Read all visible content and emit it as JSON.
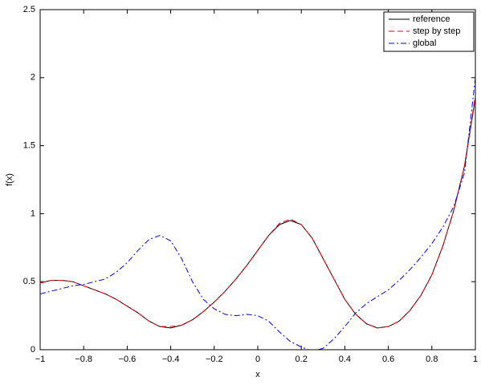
{
  "chart_data": {
    "type": "line",
    "xlabel": "x",
    "ylabel": "f(x)",
    "x": [
      -1,
      -0.95,
      -0.9,
      -0.85,
      -0.8,
      -0.75,
      -0.7,
      -0.65,
      -0.6,
      -0.55,
      -0.5,
      -0.45,
      -0.4,
      -0.35,
      -0.3,
      -0.25,
      -0.2,
      -0.15,
      -0.1,
      -0.05,
      0,
      0.05,
      0.1,
      0.15,
      0.2,
      0.25,
      0.3,
      0.35,
      0.4,
      0.45,
      0.5,
      0.55,
      0.6,
      0.65,
      0.7,
      0.75,
      0.8,
      0.85,
      0.9,
      0.95,
      1
    ],
    "series": [
      {
        "name": "reference",
        "color": "#000000",
        "style": "solid",
        "values": [
          0.49,
          0.51,
          0.51,
          0.5,
          0.47,
          0.44,
          0.41,
          0.37,
          0.32,
          0.27,
          0.21,
          0.17,
          0.16,
          0.18,
          0.22,
          0.28,
          0.35,
          0.43,
          0.52,
          0.62,
          0.73,
          0.84,
          0.92,
          0.95,
          0.92,
          0.82,
          0.67,
          0.52,
          0.37,
          0.26,
          0.19,
          0.16,
          0.17,
          0.21,
          0.29,
          0.4,
          0.55,
          0.76,
          1.02,
          1.35,
          1.85
        ]
      },
      {
        "name": "step by step",
        "color": "#ff0000",
        "style": "dashed",
        "values": [
          0.49,
          0.51,
          0.51,
          0.5,
          0.47,
          0.44,
          0.41,
          0.37,
          0.32,
          0.27,
          0.21,
          0.17,
          0.17,
          0.18,
          0.22,
          0.28,
          0.35,
          0.43,
          0.52,
          0.62,
          0.73,
          0.84,
          0.93,
          0.96,
          0.92,
          0.82,
          0.67,
          0.52,
          0.37,
          0.26,
          0.19,
          0.16,
          0.17,
          0.21,
          0.29,
          0.4,
          0.55,
          0.76,
          1.02,
          1.35,
          1.87
        ]
      },
      {
        "name": "global",
        "color": "#0000ff",
        "style": "dashdot",
        "values": [
          0.41,
          0.43,
          0.45,
          0.47,
          0.48,
          0.5,
          0.52,
          0.57,
          0.64,
          0.73,
          0.81,
          0.84,
          0.8,
          0.67,
          0.5,
          0.37,
          0.3,
          0.26,
          0.25,
          0.26,
          0.25,
          0.21,
          0.13,
          0.06,
          0.02,
          -0.01,
          0.01,
          0.08,
          0.17,
          0.27,
          0.34,
          0.39,
          0.44,
          0.51,
          0.59,
          0.68,
          0.78,
          0.9,
          1.05,
          1.3,
          2.0
        ]
      }
    ],
    "xlim": [
      -1,
      1
    ],
    "xticks": [
      {
        "value": -1,
        "label": "−1"
      },
      {
        "value": -0.8,
        "label": "−0.8"
      },
      {
        "value": -0.6,
        "label": "−0.6"
      },
      {
        "value": -0.4,
        "label": "−0.4"
      },
      {
        "value": -0.2,
        "label": "−0.2"
      },
      0,
      0.2,
      0.4,
      0.6,
      0.8,
      1
    ],
    "ylim": [
      0,
      2.5
    ],
    "yticks": [
      0,
      0.5,
      1,
      1.5,
      2,
      2.5
    ],
    "grid": false,
    "legend": "upper right"
  }
}
